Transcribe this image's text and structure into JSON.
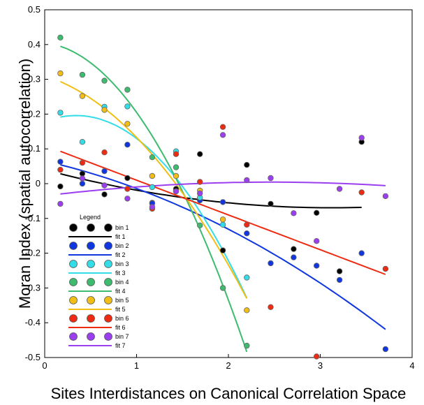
{
  "chart_data": {
    "type": "scatter",
    "title": "",
    "xlabel": "Sites Interdistances on Canonical Correlation Space",
    "ylabel": "Moran Index (spatial autocorrelation)",
    "xlim": [
      0,
      4
    ],
    "ylim": [
      -0.5,
      0.5
    ],
    "x_ticks": [
      "0",
      "1",
      "2",
      "3",
      "4"
    ],
    "y_ticks": [
      "0.5",
      "0.4",
      "0.3",
      "0.2",
      "0.1",
      "0",
      "-0.1",
      "-0.2",
      "-0.3",
      "-0.4",
      "-0.5"
    ],
    "legend_title": "Legend",
    "legend_placement": "bottom-left",
    "grid": false,
    "series": [
      {
        "name": "bin 1",
        "fit_name": "fit 1",
        "color": "#000000",
        "x": [
          0.17,
          0.41,
          0.65,
          0.9,
          1.17,
          1.43,
          1.69,
          1.94,
          2.2,
          2.46,
          2.71,
          2.96,
          3.21,
          3.45
        ],
        "y": [
          -0.008,
          0.029,
          -0.031,
          0.016,
          -0.055,
          -0.015,
          0.085,
          -0.192,
          0.054,
          -0.058,
          -0.188,
          -0.084,
          -0.252,
          0.12
        ],
        "fit_x": [
          0.17,
          3.45
        ],
        "fit_coef": [
          0.04,
          -0.07,
          0.0112
        ]
      },
      {
        "name": "bin 2",
        "fit_name": "fit 2",
        "color": "#1036e0",
        "x": [
          0.17,
          0.41,
          0.65,
          0.9,
          1.17,
          1.43,
          1.69,
          1.94,
          2.2,
          2.46,
          2.71,
          2.96,
          3.21,
          3.45,
          3.71
        ],
        "y": [
          0.063,
          0.0,
          0.036,
          0.112,
          -0.057,
          -0.022,
          -0.048,
          -0.053,
          -0.143,
          -0.229,
          -0.212,
          -0.236,
          -0.277,
          -0.2,
          -0.476
        ],
        "fit_x": [
          0.17,
          3.71
        ],
        "fit_coef": [
          0.065,
          -0.06,
          -0.019
        ]
      },
      {
        "name": "bin 3",
        "fit_name": "fit 3",
        "color": "#33dde8",
        "x": [
          0.17,
          0.41,
          0.65,
          0.9,
          1.17,
          1.43,
          1.69,
          1.94,
          2.2
        ],
        "y": [
          0.204,
          0.12,
          0.221,
          0.222,
          -0.01,
          0.093,
          -0.04,
          -0.118,
          -0.27
        ],
        "fit_x": [
          0.17,
          2.2
        ],
        "fit_coef": [
          0.178,
          0.104,
          -0.152
        ]
      },
      {
        "name": "bin 4",
        "fit_name": "fit 4",
        "color": "#3dbb6e",
        "x": [
          0.17,
          0.41,
          0.65,
          0.9,
          1.17,
          1.43,
          1.69,
          1.94,
          2.2
        ],
        "y": [
          0.42,
          0.313,
          0.296,
          0.27,
          0.076,
          0.047,
          -0.12,
          -0.3,
          -0.466
        ],
        "fit_x": [
          0.17,
          2.2
        ],
        "fit_coef": [
          0.405,
          -0.03,
          -0.17
        ]
      },
      {
        "name": "bin 5",
        "fit_name": "fit 5",
        "color": "#f2be16",
        "x": [
          0.17,
          0.41,
          0.65,
          0.9,
          1.17,
          1.43,
          1.69,
          1.94,
          2.2
        ],
        "y": [
          0.317,
          0.252,
          0.212,
          0.172,
          0.022,
          0.022,
          -0.02,
          -0.103,
          -0.364
        ],
        "fit_x": [
          0.17,
          2.2
        ],
        "fit_coef": [
          0.31,
          -0.082,
          -0.095
        ]
      },
      {
        "name": "bin 6",
        "fit_name": "fit 6",
        "color": "#ee2a10",
        "x": [
          0.17,
          0.41,
          0.65,
          0.9,
          1.17,
          1.43,
          1.69,
          1.94,
          2.2,
          2.46,
          2.96,
          3.45,
          3.71
        ],
        "y": [
          0.04,
          0.06,
          0.09,
          -0.015,
          -0.072,
          0.085,
          0.005,
          0.163,
          -0.118,
          -0.355,
          -0.497,
          -0.025,
          -0.245
        ],
        "fit_x": [
          0.17,
          3.71
        ],
        "fit_coef": [
          0.11,
          -0.1,
          0.0
        ]
      },
      {
        "name": "bin 7",
        "fit_name": "fit 7",
        "color": "#9b3ef0",
        "x": [
          0.17,
          0.41,
          0.65,
          0.9,
          1.17,
          1.43,
          1.69,
          1.94,
          2.2,
          2.46,
          2.71,
          2.96,
          3.21,
          3.45,
          3.71
        ],
        "y": [
          -0.058,
          0.015,
          -0.005,
          -0.043,
          -0.067,
          -0.022,
          -0.028,
          0.14,
          0.01,
          0.016,
          -0.085,
          -0.165,
          -0.015,
          0.132,
          -0.036
        ],
        "fit_x": [
          0.17,
          3.71
        ],
        "fit_coef": [
          -0.035,
          0.032,
          -0.0065
        ]
      }
    ]
  }
}
